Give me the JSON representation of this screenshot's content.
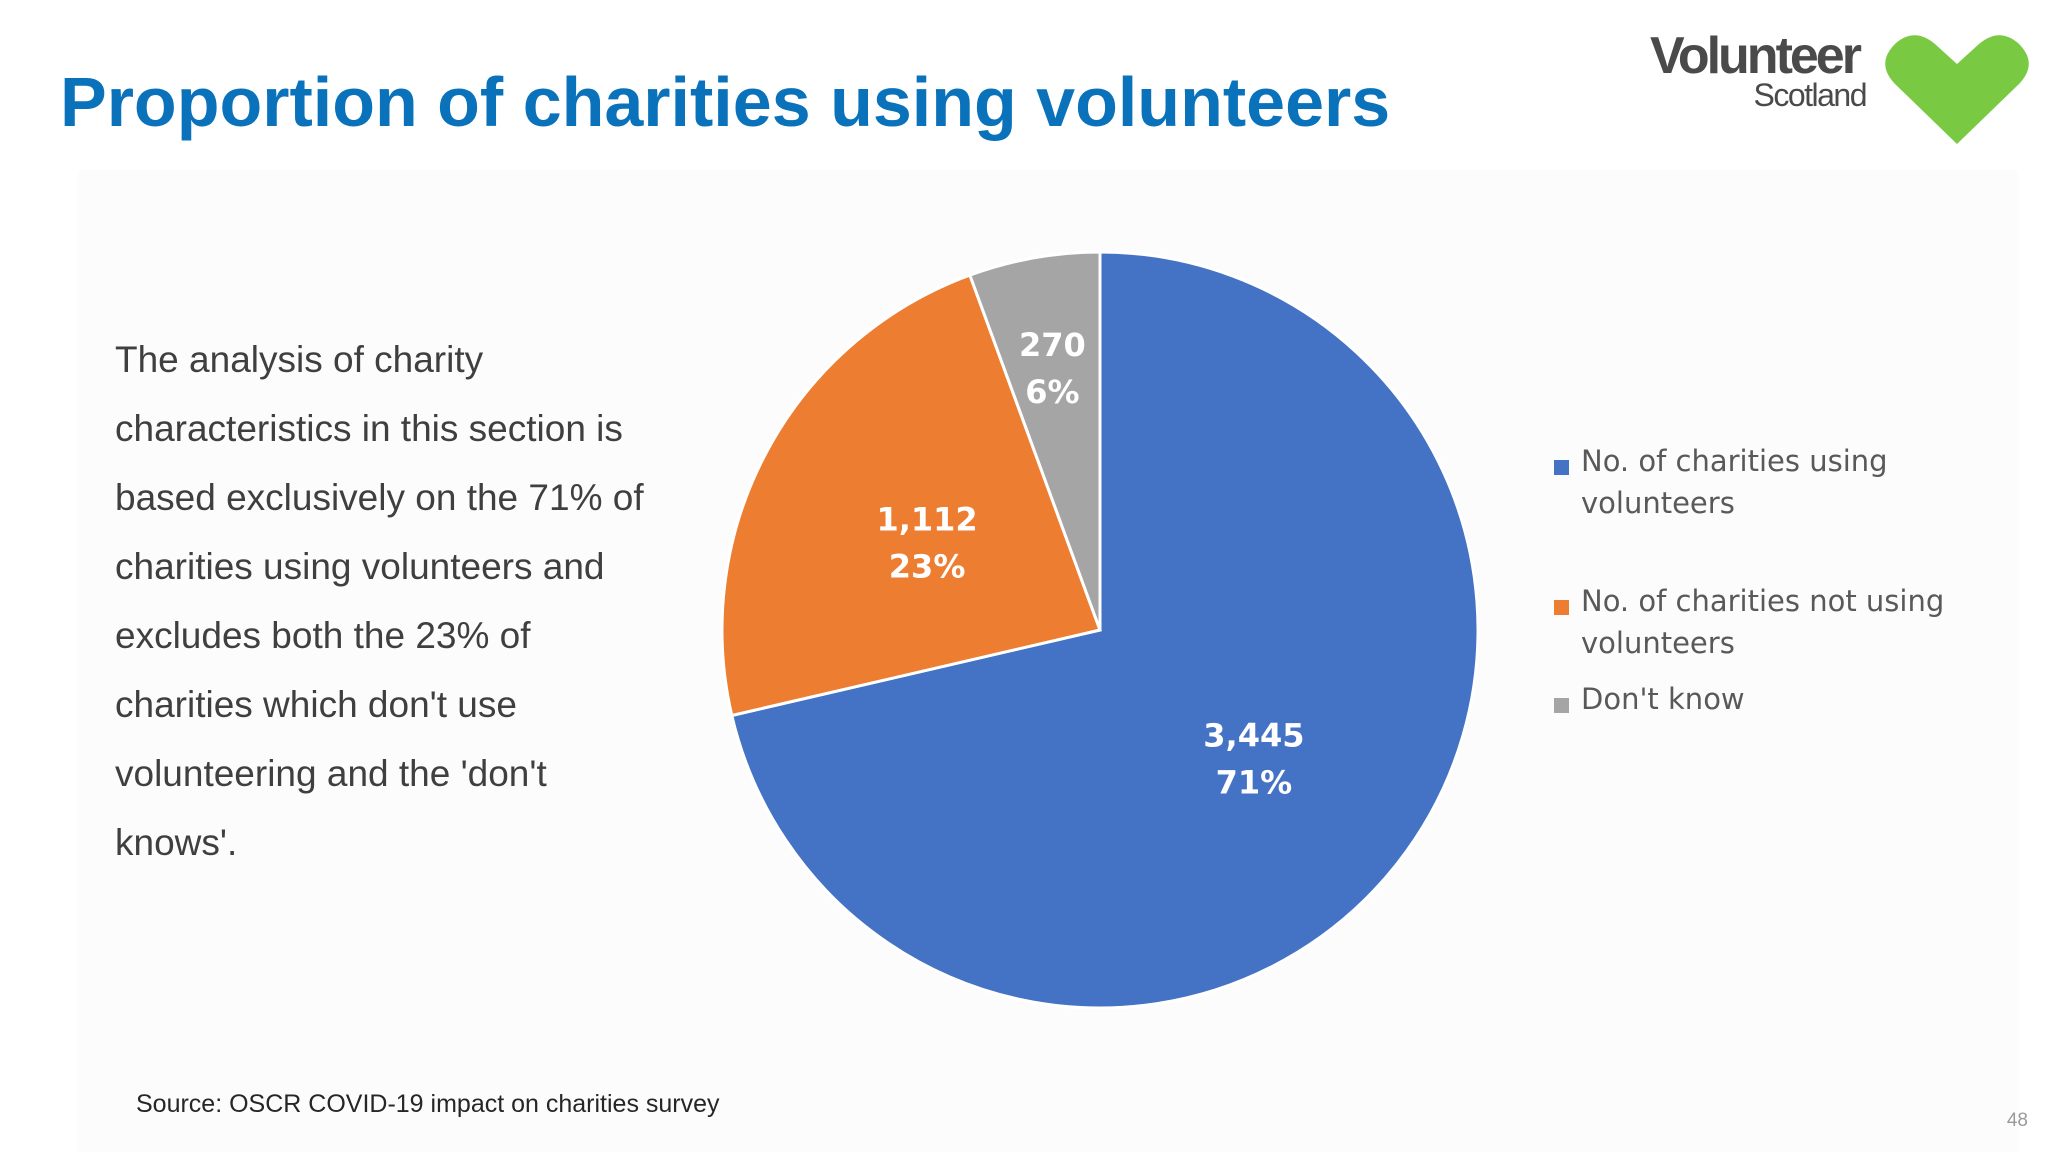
{
  "slide": {
    "title": "Proportion of charities using volunteers",
    "body_text": "The analysis of charity characteristics in this section is based exclusively on the 71% of charities using volunteers and excludes both the 23% of charities which don't use volunteering and the 'don't knows'.",
    "source": "Source: OSCR COVID-19 impact on charities survey",
    "page_number": "48"
  },
  "logo": {
    "word": "Volunteer",
    "sub": "Scotland",
    "heart_color": "#7ac943"
  },
  "chart_data": {
    "type": "pie",
    "start_angle_deg": 0,
    "direction": "clockwise",
    "legend_position": "right",
    "slices": [
      {
        "name": "No. of charities using volunteers",
        "value": 3445,
        "value_label": "3,445",
        "percent_label": "71%",
        "color": "#4472c4"
      },
      {
        "name": "No. of charities not using volunteers",
        "value": 1112,
        "value_label": "1,112",
        "percent_label": "23%",
        "color": "#ed7d31"
      },
      {
        "name": "Don't know",
        "value": 270,
        "value_label": "270",
        "percent_label": "6%",
        "color": "#a5a5a5"
      }
    ]
  }
}
